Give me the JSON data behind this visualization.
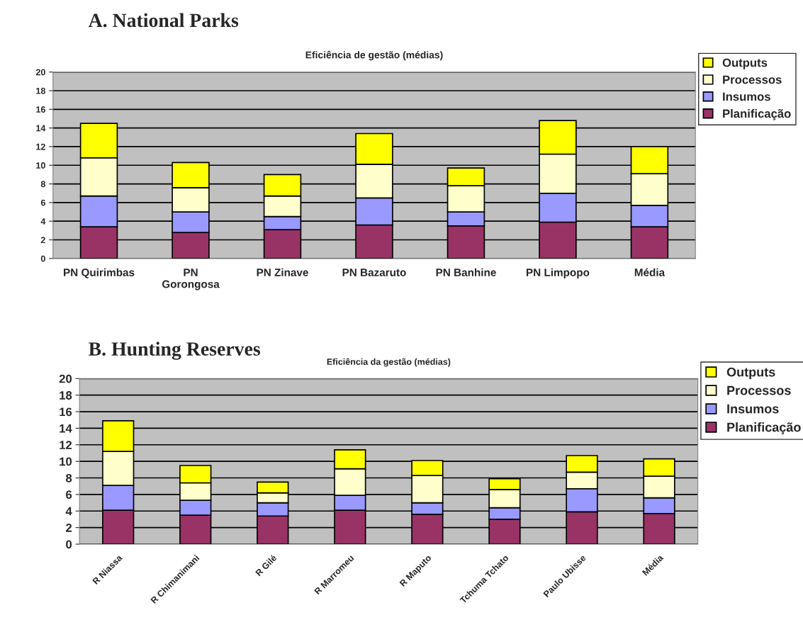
{
  "chart_data": [
    {
      "type": "bar",
      "title": "A. National Parks",
      "subtitle": "Eficiência de gestão (médias)",
      "stacked": true,
      "categories": [
        "PN Quirimbas",
        "PN\nGorongosa",
        "PN Zinave",
        "PN Bazaruto",
        "PN Banhine",
        "PN Limpopo",
        "Média"
      ],
      "series": [
        {
          "name": "Planificação",
          "color": "#993366",
          "values": [
            3.4,
            2.8,
            3.1,
            3.6,
            3.5,
            3.9,
            3.4
          ]
        },
        {
          "name": "Insumos",
          "color": "#9999ff",
          "values": [
            3.3,
            2.2,
            1.4,
            2.9,
            1.5,
            3.1,
            2.3
          ]
        },
        {
          "name": "Processos",
          "color": "#ffffcc",
          "values": [
            4.1,
            2.6,
            2.2,
            3.6,
            2.8,
            4.2,
            3.4
          ]
        },
        {
          "name": "Outputs",
          "color": "#ffff00",
          "values": [
            3.7,
            2.7,
            2.3,
            3.3,
            1.9,
            3.6,
            2.9
          ]
        }
      ],
      "ylim": [
        0,
        20
      ],
      "yticks": [
        0,
        2,
        4,
        6,
        8,
        10,
        12,
        14,
        16,
        18,
        20
      ],
      "grid": "y",
      "legend": "top right"
    },
    {
      "type": "bar",
      "title": "B. Hunting Reserves",
      "subtitle": "Eficiência da gestão (médias)",
      "stacked": true,
      "categories": [
        "R Niassa",
        "R Chimanimani",
        "R Gilé",
        "R Marromeu",
        "R Maputo",
        "Tchuma Tchato",
        "Paulo Ubisse",
        "Média"
      ],
      "series": [
        {
          "name": "Planificação",
          "color": "#993366",
          "values": [
            4.1,
            3.5,
            3.4,
            4.1,
            3.6,
            3.0,
            3.9,
            3.7
          ]
        },
        {
          "name": "Insumos",
          "color": "#9999ff",
          "values": [
            3.0,
            1.8,
            1.6,
            1.8,
            1.4,
            1.4,
            2.8,
            1.9
          ]
        },
        {
          "name": "Processos",
          "color": "#ffffcc",
          "values": [
            4.1,
            2.1,
            1.2,
            3.2,
            3.3,
            2.2,
            2.0,
            2.6
          ]
        },
        {
          "name": "Outputs",
          "color": "#ffff00",
          "values": [
            3.7,
            2.1,
            1.3,
            2.3,
            1.8,
            1.3,
            2.0,
            2.1
          ]
        }
      ],
      "ylim": [
        0,
        20
      ],
      "yticks": [
        0,
        2,
        4,
        6,
        8,
        10,
        12,
        14,
        16,
        18,
        20
      ],
      "grid": "y",
      "legend": "top right"
    }
  ]
}
